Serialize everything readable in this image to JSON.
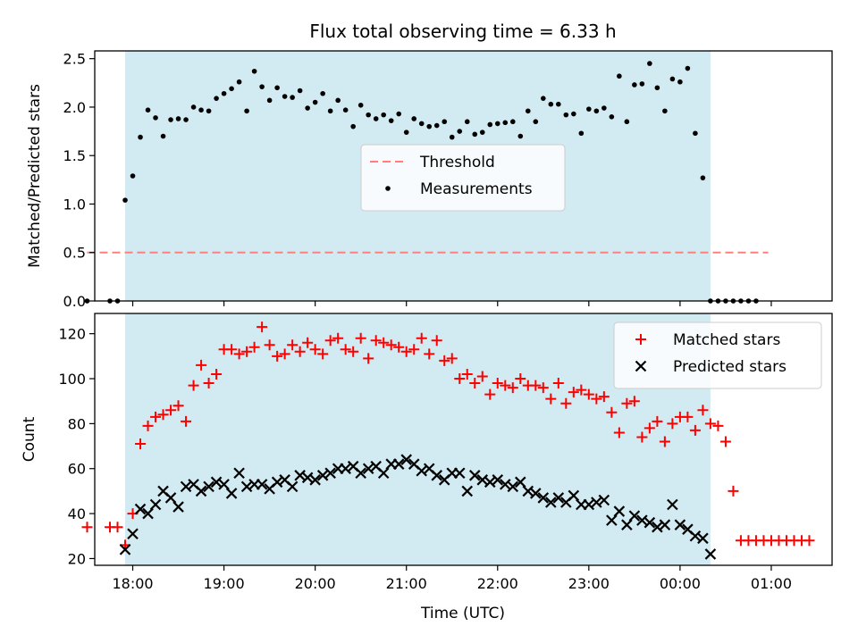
{
  "title": "Flux total observing time = 6.33 h",
  "xlabel": "Time (UTC)",
  "x_ticks": [
    "18:00",
    "19:00",
    "20:00",
    "21:00",
    "22:00",
    "23:00",
    "00:00",
    "01:00"
  ],
  "colors": {
    "window": "#add8e6",
    "threshold": "#ff7f7f",
    "measurement": "#000000",
    "matched": "#ff0000",
    "predicted": "#000000"
  },
  "chart_data": [
    {
      "type": "scatter",
      "ylabel": "Matched/Predicted stars",
      "ylim": [
        0,
        2.58
      ],
      "y_ticks": [
        "0.0",
        "0.5",
        "1.0",
        "1.5",
        "2.0",
        "2.5"
      ],
      "xlim": [
        "17:35",
        "01:40"
      ],
      "observing_window": [
        "17:55",
        "00:20"
      ],
      "legend_position": "center",
      "threshold": {
        "name": "Threshold",
        "y": 0.5,
        "x_range": [
          "17:30",
          "00:58"
        ]
      },
      "series": [
        {
          "name": "Measurements",
          "points": [
            [
              "17:30",
              0.0
            ],
            [
              "17:45",
              0.0
            ],
            [
              "17:50",
              0.0
            ],
            [
              "17:55",
              1.04
            ],
            [
              "18:00",
              1.29
            ],
            [
              "18:05",
              1.69
            ],
            [
              "18:10",
              1.97
            ],
            [
              "18:15",
              1.89
            ],
            [
              "18:20",
              1.7
            ],
            [
              "18:25",
              1.87
            ],
            [
              "18:30",
              1.88
            ],
            [
              "18:35",
              1.87
            ],
            [
              "18:40",
              2.0
            ],
            [
              "18:45",
              1.97
            ],
            [
              "18:50",
              1.96
            ],
            [
              "18:55",
              2.09
            ],
            [
              "19:00",
              2.14
            ],
            [
              "19:05",
              2.19
            ],
            [
              "19:10",
              2.26
            ],
            [
              "19:15",
              1.96
            ],
            [
              "19:20",
              2.37
            ],
            [
              "19:25",
              2.21
            ],
            [
              "19:30",
              2.07
            ],
            [
              "19:35",
              2.2
            ],
            [
              "19:40",
              2.11
            ],
            [
              "19:45",
              2.1
            ],
            [
              "19:50",
              2.17
            ],
            [
              "19:55",
              1.99
            ],
            [
              "20:00",
              2.05
            ],
            [
              "20:05",
              2.14
            ],
            [
              "20:10",
              1.96
            ],
            [
              "20:15",
              2.07
            ],
            [
              "20:20",
              1.97
            ],
            [
              "20:25",
              1.8
            ],
            [
              "20:30",
              2.02
            ],
            [
              "20:35",
              1.92
            ],
            [
              "20:40",
              1.88
            ],
            [
              "20:45",
              1.92
            ],
            [
              "20:50",
              1.86
            ],
            [
              "20:55",
              1.93
            ],
            [
              "21:00",
              1.74
            ],
            [
              "21:05",
              1.88
            ],
            [
              "21:10",
              1.83
            ],
            [
              "21:15",
              1.8
            ],
            [
              "21:20",
              1.81
            ],
            [
              "21:25",
              1.85
            ],
            [
              "21:30",
              1.69
            ],
            [
              "21:35",
              1.75
            ],
            [
              "21:40",
              1.85
            ],
            [
              "21:45",
              1.72
            ],
            [
              "21:50",
              1.74
            ],
            [
              "21:55",
              1.82
            ],
            [
              "22:00",
              1.83
            ],
            [
              "22:05",
              1.84
            ],
            [
              "22:10",
              1.85
            ],
            [
              "22:15",
              1.7
            ],
            [
              "22:20",
              1.96
            ],
            [
              "22:25",
              1.85
            ],
            [
              "22:30",
              2.09
            ],
            [
              "22:35",
              2.03
            ],
            [
              "22:40",
              2.03
            ],
            [
              "22:45",
              1.92
            ],
            [
              "22:50",
              1.93
            ],
            [
              "22:55",
              1.73
            ],
            [
              "23:00",
              1.98
            ],
            [
              "23:05",
              1.96
            ],
            [
              "23:10",
              1.99
            ],
            [
              "23:15",
              1.9
            ],
            [
              "23:20",
              2.32
            ],
            [
              "23:25",
              1.85
            ],
            [
              "23:30",
              2.23
            ],
            [
              "23:35",
              2.24
            ],
            [
              "23:40",
              2.45
            ],
            [
              "23:45",
              2.2
            ],
            [
              "23:50",
              1.96
            ],
            [
              "23:55",
              2.29
            ],
            [
              "00:00",
              2.26
            ],
            [
              "00:05",
              2.4
            ],
            [
              "00:10",
              1.73
            ],
            [
              "00:15",
              1.27
            ],
            [
              "00:20",
              0.0
            ],
            [
              "00:25",
              0.0
            ],
            [
              "00:30",
              0.0
            ],
            [
              "00:35",
              0.0
            ],
            [
              "00:40",
              0.0
            ],
            [
              "00:45",
              0.0
            ],
            [
              "00:50",
              0.0
            ]
          ]
        }
      ]
    },
    {
      "type": "scatter",
      "ylabel": "Count",
      "ylim": [
        17,
        129
      ],
      "y_ticks": [
        "20",
        "40",
        "60",
        "80",
        "100",
        "120"
      ],
      "xlim": [
        "17:35",
        "01:40"
      ],
      "observing_window": [
        "17:55",
        "00:20"
      ],
      "legend_position": "upper right",
      "series": [
        {
          "name": "Matched stars",
          "marker": "plus",
          "points": [
            [
              "17:30",
              34
            ],
            [
              "17:45",
              34
            ],
            [
              "17:50",
              34
            ],
            [
              "17:55",
              26
            ],
            [
              "18:00",
              40
            ],
            [
              "18:05",
              71
            ],
            [
              "18:10",
              79
            ],
            [
              "18:15",
              83
            ],
            [
              "18:20",
              84
            ],
            [
              "18:25",
              86
            ],
            [
              "18:30",
              88
            ],
            [
              "18:35",
              81
            ],
            [
              "18:40",
              97
            ],
            [
              "18:45",
              106
            ],
            [
              "18:50",
              98
            ],
            [
              "18:55",
              102
            ],
            [
              "19:00",
              113
            ],
            [
              "19:05",
              113
            ],
            [
              "19:10",
              111
            ],
            [
              "19:15",
              112
            ],
            [
              "19:20",
              114
            ],
            [
              "19:25",
              123
            ],
            [
              "19:30",
              115
            ],
            [
              "19:35",
              110
            ],
            [
              "19:40",
              111
            ],
            [
              "19:45",
              115
            ],
            [
              "19:50",
              112
            ],
            [
              "19:55",
              116
            ],
            [
              "20:00",
              113
            ],
            [
              "20:05",
              111
            ],
            [
              "20:10",
              117
            ],
            [
              "20:15",
              118
            ],
            [
              "20:20",
              113
            ],
            [
              "20:25",
              112
            ],
            [
              "20:30",
              118
            ],
            [
              "20:35",
              109
            ],
            [
              "20:40",
              117
            ],
            [
              "20:45",
              116
            ],
            [
              "20:50",
              115
            ],
            [
              "20:55",
              114
            ],
            [
              "21:00",
              112
            ],
            [
              "21:05",
              113
            ],
            [
              "21:10",
              118
            ],
            [
              "21:15",
              111
            ],
            [
              "21:20",
              117
            ],
            [
              "21:25",
              108
            ],
            [
              "21:30",
              109
            ],
            [
              "21:35",
              100
            ],
            [
              "21:40",
              102
            ],
            [
              "21:45",
              98
            ],
            [
              "21:50",
              101
            ],
            [
              "21:55",
              93
            ],
            [
              "22:00",
              98
            ],
            [
              "22:05",
              97
            ],
            [
              "22:10",
              96
            ],
            [
              "22:15",
              100
            ],
            [
              "22:20",
              97
            ],
            [
              "22:25",
              97
            ],
            [
              "22:30",
              96
            ],
            [
              "22:35",
              91
            ],
            [
              "22:40",
              98
            ],
            [
              "22:45",
              89
            ],
            [
              "22:50",
              94
            ],
            [
              "22:55",
              95
            ],
            [
              "23:00",
              93
            ],
            [
              "23:05",
              91
            ],
            [
              "23:10",
              92
            ],
            [
              "23:15",
              85
            ],
            [
              "23:20",
              76
            ],
            [
              "23:25",
              89
            ],
            [
              "23:30",
              90
            ],
            [
              "23:35",
              74
            ],
            [
              "23:40",
              78
            ],
            [
              "23:45",
              81
            ],
            [
              "23:50",
              72
            ],
            [
              "23:55",
              80
            ],
            [
              "00:00",
              83
            ],
            [
              "00:05",
              83
            ],
            [
              "00:10",
              77
            ],
            [
              "00:15",
              86
            ],
            [
              "00:20",
              80
            ],
            [
              "00:25",
              79
            ],
            [
              "00:30",
              72
            ],
            [
              "00:35",
              50
            ],
            [
              "00:40",
              28
            ],
            [
              "00:45",
              28
            ],
            [
              "00:50",
              28
            ],
            [
              "00:55",
              28
            ],
            [
              "01:00",
              28
            ],
            [
              "01:05",
              28
            ],
            [
              "01:10",
              28
            ],
            [
              "01:15",
              28
            ],
            [
              "01:20",
              28
            ],
            [
              "01:25",
              28
            ]
          ]
        },
        {
          "name": "Predicted stars",
          "marker": "x",
          "points": [
            [
              "17:55",
              24
            ],
            [
              "18:00",
              31
            ],
            [
              "18:05",
              42
            ],
            [
              "18:10",
              40
            ],
            [
              "18:15",
              44
            ],
            [
              "18:20",
              50
            ],
            [
              "18:25",
              47
            ],
            [
              "18:30",
              43
            ],
            [
              "18:35",
              52
            ],
            [
              "18:40",
              53
            ],
            [
              "18:45",
              50
            ],
            [
              "18:50",
              52
            ],
            [
              "18:55",
              54
            ],
            [
              "19:00",
              53
            ],
            [
              "19:05",
              49
            ],
            [
              "19:10",
              58
            ],
            [
              "19:15",
              52
            ],
            [
              "19:20",
              53
            ],
            [
              "19:25",
              53
            ],
            [
              "19:30",
              51
            ],
            [
              "19:35",
              54
            ],
            [
              "19:40",
              55
            ],
            [
              "19:45",
              52
            ],
            [
              "19:50",
              57
            ],
            [
              "19:55",
              56
            ],
            [
              "20:00",
              55
            ],
            [
              "20:05",
              57
            ],
            [
              "20:10",
              58
            ],
            [
              "20:15",
              60
            ],
            [
              "20:20",
              60
            ],
            [
              "20:25",
              61
            ],
            [
              "20:30",
              58
            ],
            [
              "20:35",
              60
            ],
            [
              "20:40",
              61
            ],
            [
              "20:45",
              58
            ],
            [
              "20:50",
              62
            ],
            [
              "20:55",
              62
            ],
            [
              "21:00",
              64
            ],
            [
              "21:05",
              62
            ],
            [
              "21:10",
              59
            ],
            [
              "21:15",
              60
            ],
            [
              "21:20",
              57
            ],
            [
              "21:25",
              55
            ],
            [
              "21:30",
              58
            ],
            [
              "21:35",
              58
            ],
            [
              "21:40",
              50
            ],
            [
              "21:45",
              57
            ],
            [
              "21:50",
              55
            ],
            [
              "21:55",
              54
            ],
            [
              "22:00",
              55
            ],
            [
              "22:05",
              53
            ],
            [
              "22:10",
              52
            ],
            [
              "22:15",
              54
            ],
            [
              "22:20",
              50
            ],
            [
              "22:25",
              49
            ],
            [
              "22:30",
              47
            ],
            [
              "22:35",
              45
            ],
            [
              "22:40",
              47
            ],
            [
              "22:45",
              45
            ],
            [
              "22:50",
              48
            ],
            [
              "22:55",
              44
            ],
            [
              "23:00",
              44
            ],
            [
              "23:05",
              45
            ],
            [
              "23:10",
              46
            ],
            [
              "23:15",
              37
            ],
            [
              "23:20",
              41
            ],
            [
              "23:25",
              35
            ],
            [
              "23:30",
              39
            ],
            [
              "23:35",
              37
            ],
            [
              "23:40",
              36
            ],
            [
              "23:45",
              34
            ],
            [
              "23:50",
              35
            ],
            [
              "23:55",
              44
            ],
            [
              "00:00",
              35
            ],
            [
              "00:05",
              33
            ],
            [
              "00:10",
              30
            ],
            [
              "00:15",
              29
            ],
            [
              "00:20",
              22
            ]
          ]
        }
      ]
    }
  ]
}
